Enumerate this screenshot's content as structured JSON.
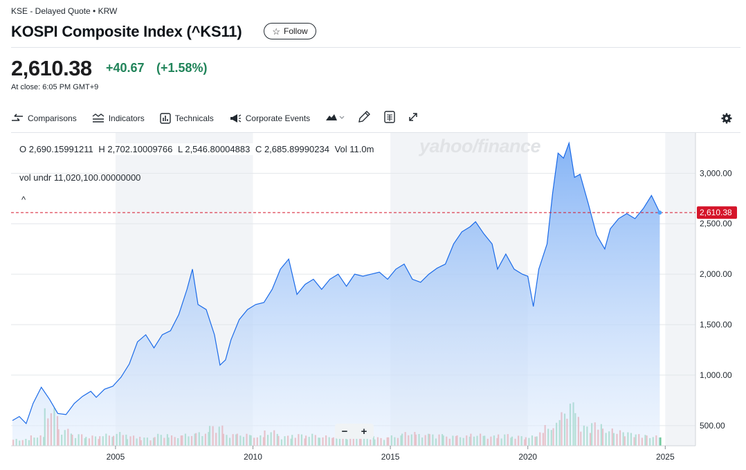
{
  "header": {
    "breadcrumb": "KSE - Delayed Quote • KRW",
    "title": "KOSPI Composite Index (^KS11)",
    "follow_label": "Follow"
  },
  "quote": {
    "price": "2,610.38",
    "change": "+40.67",
    "change_pct": "(+1.58%)",
    "close_time": "At close: 6:05 PM GMT+9"
  },
  "toolbar": {
    "comparisons": "Comparisons",
    "indicators": "Indicators",
    "technicals": "Technicals",
    "corporate_events": "Corporate Events"
  },
  "ohlc": {
    "open": "O 2,690.15991211",
    "high": "H 2,702.10009766",
    "low": "L 2,546.80004883",
    "close": "C 2,685.89990234",
    "vol": "Vol 11.0m"
  },
  "vol_underlay": "vol undr  11,020,100.00000000",
  "watermark": "yahoo/finance",
  "colors": {
    "line": "#1a6ae8",
    "area_top": "#8cb8f5",
    "vol_up": "#5cc28f",
    "vol_down": "#ec6f6f",
    "price_tag": "#d5152a",
    "positive": "#21845a"
  },
  "chart_data": {
    "type": "area",
    "title": "",
    "last_price_label": "2,610.38",
    "y_tick_labels": [
      "3,000.00",
      "2,500.00",
      "2,000.00",
      "1,500.00",
      "1,000.00",
      "500.00"
    ],
    "y_ticks": [
      3000,
      2500,
      2000,
      1500,
      1000,
      500
    ],
    "x_tick_labels": [
      "2005",
      "2010",
      "2015",
      "2020",
      "2025"
    ],
    "x_ticks": [
      2005,
      2010,
      2015,
      2020,
      2025
    ],
    "xlim": [
      2001.2,
      2026.1
    ],
    "ylim": [
      300,
      3400
    ],
    "grid": true,
    "series": [
      {
        "x": [
          2001.25,
          2001.5,
          2001.75,
          2002.0,
          2002.3,
          2002.6,
          2002.9,
          2003.2,
          2003.5,
          2003.8,
          2004.1,
          2004.3,
          2004.6,
          2004.9,
          2005.2,
          2005.5,
          2005.8,
          2006.1,
          2006.4,
          2006.7,
          2007.0,
          2007.3,
          2007.6,
          2007.8,
          2008.0,
          2008.3,
          2008.6,
          2008.8,
          2009.0,
          2009.2,
          2009.5,
          2009.8,
          2010.1,
          2010.4,
          2010.7,
          2011.0,
          2011.3,
          2011.6,
          2011.9,
          2012.2,
          2012.5,
          2012.8,
          2013.1,
          2013.4,
          2013.7,
          2014.0,
          2014.3,
          2014.6,
          2014.9,
          2015.2,
          2015.5,
          2015.8,
          2016.1,
          2016.4,
          2016.7,
          2017.0,
          2017.3,
          2017.6,
          2017.9,
          2018.1,
          2018.4,
          2018.7,
          2018.9,
          2019.2,
          2019.5,
          2019.8,
          2020.0,
          2020.2,
          2020.4,
          2020.7,
          2020.9,
          2021.1,
          2021.3,
          2021.5,
          2021.7,
          2021.9,
          2022.2,
          2022.5,
          2022.8,
          2023.0,
          2023.3,
          2023.6,
          2023.9,
          2024.2,
          2024.5,
          2024.8
        ],
        "y": [
          550,
          590,
          520,
          720,
          880,
          760,
          620,
          610,
          720,
          790,
          840,
          780,
          860,
          890,
          980,
          1110,
          1330,
          1400,
          1270,
          1400,
          1440,
          1600,
          1850,
          2050,
          1700,
          1650,
          1400,
          1100,
          1150,
          1350,
          1550,
          1650,
          1700,
          1720,
          1850,
          2050,
          2150,
          1800,
          1900,
          1950,
          1850,
          1950,
          2000,
          1880,
          2000,
          1980,
          2000,
          2020,
          1950,
          2050,
          2100,
          1950,
          1920,
          2000,
          2060,
          2100,
          2300,
          2420,
          2470,
          2520,
          2400,
          2300,
          2050,
          2200,
          2050,
          2000,
          1980,
          1680,
          2050,
          2300,
          2800,
          3200,
          3150,
          3300,
          2960,
          2990,
          2700,
          2390,
          2250,
          2450,
          2550,
          2600,
          2550,
          2650,
          2780,
          2610
        ]
      }
    ],
    "volume": {
      "ylim": [
        0,
        2600
      ],
      "x": [
        2001.25,
        2001.9,
        2002.4,
        2002.9,
        2003.4,
        2003.9,
        2004.4,
        2004.9,
        2005.4,
        2005.9,
        2006.4,
        2006.9,
        2007.4,
        2007.9,
        2008.4,
        2008.9,
        2009.4,
        2009.9,
        2010.4,
        2010.9,
        2011.4,
        2011.9,
        2012.4,
        2012.9,
        2013.4,
        2013.9,
        2014.4,
        2014.9,
        2015.4,
        2015.9,
        2016.4,
        2016.9,
        2017.4,
        2017.9,
        2018.4,
        2018.9,
        2019.4,
        2019.9,
        2020.3,
        2020.6,
        2020.9,
        2021.2,
        2021.4,
        2021.7,
        2021.9,
        2022.3,
        2022.7,
        2023.1,
        2023.5,
        2023.9,
        2024.3,
        2024.8
      ],
      "values": [
        200,
        300,
        1100,
        500,
        350,
        300,
        350,
        400,
        300,
        250,
        350,
        300,
        350,
        400,
        600,
        350,
        350,
        300,
        450,
        300,
        350,
        350,
        300,
        350,
        300,
        300,
        250,
        300,
        400,
        350,
        350,
        300,
        300,
        350,
        300,
        350,
        300,
        300,
        400,
        600,
        750,
        1000,
        1300,
        950,
        600,
        700,
        500,
        450,
        400,
        350,
        300,
        250
      ],
      "up": [
        true,
        true,
        false,
        true,
        true,
        false,
        true,
        true,
        false,
        true,
        true,
        false,
        true,
        true,
        false,
        true,
        true,
        false,
        true,
        true,
        false,
        true,
        false,
        true,
        false,
        true,
        false,
        true,
        false,
        true,
        true,
        false,
        true,
        true,
        false,
        true,
        false,
        true,
        false,
        true,
        true,
        true,
        true,
        false,
        true,
        false,
        true,
        false,
        true,
        false,
        true,
        false
      ]
    }
  }
}
